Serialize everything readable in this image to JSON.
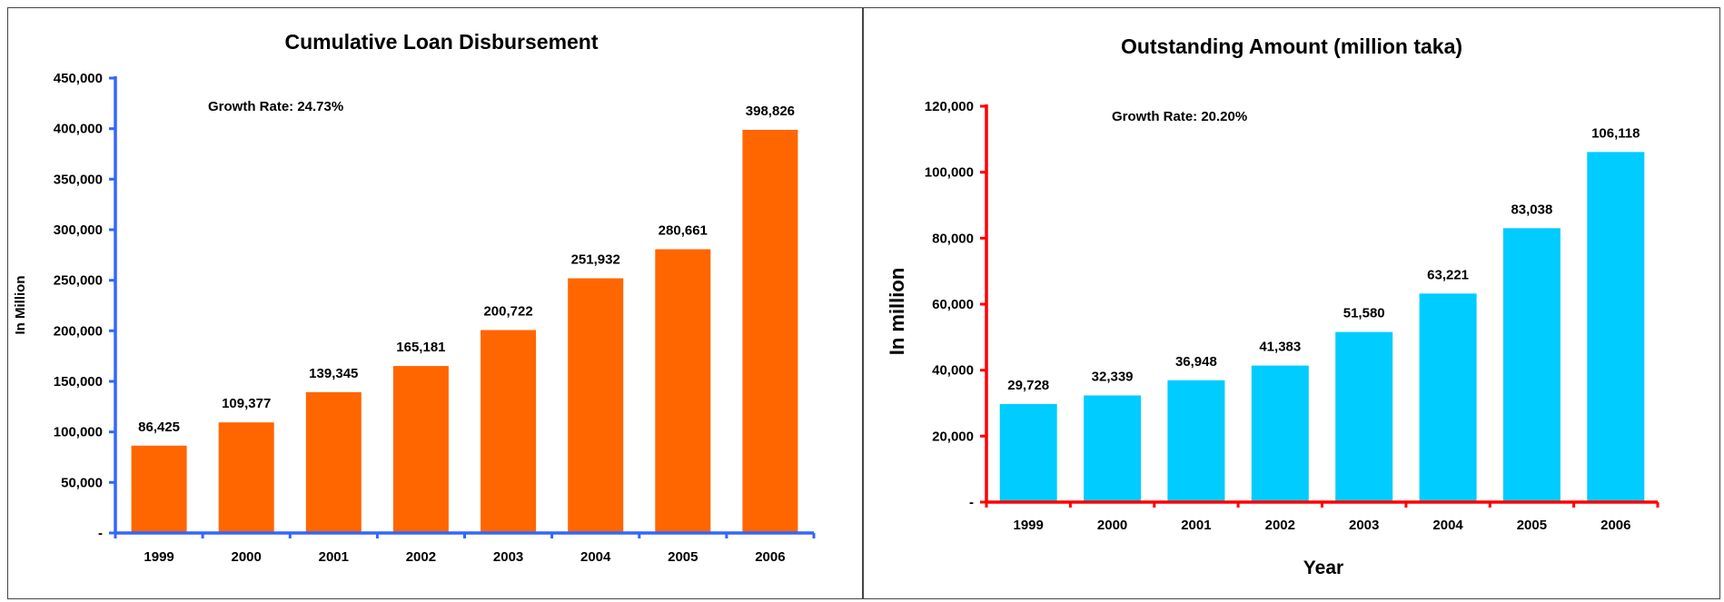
{
  "chart_data": [
    {
      "type": "bar",
      "title": "Cumulative Loan Disbursement",
      "annotation": "Growth Rate: 24.73%",
      "ylabel": "In Million",
      "xlabel": "",
      "categories": [
        "1999",
        "2000",
        "2001",
        "2002",
        "2003",
        "2004",
        "2005",
        "2006"
      ],
      "values": [
        86425,
        109377,
        139345,
        165181,
        200722,
        251932,
        280661,
        398826
      ],
      "data_labels": [
        "86,425",
        "109,377",
        "139,345",
        "165,181",
        "200,722",
        "251,932",
        "280,661",
        "398,826"
      ],
      "ylim": [
        0,
        450000
      ],
      "y_ticks": [
        0,
        50000,
        100000,
        150000,
        200000,
        250000,
        300000,
        350000,
        400000,
        450000
      ],
      "y_tick_labels": [
        "-",
        "50,000",
        "100,000",
        "150,000",
        "200,000",
        "250,000",
        "300,000",
        "350,000",
        "400,000",
        "450,000"
      ],
      "bar_color": "#FF6600",
      "axis_color": "#3366FF",
      "grid": false,
      "legend": false
    },
    {
      "type": "bar",
      "title": "Outstanding Amount (million taka)",
      "annotation": "Growth Rate: 20.20%",
      "ylabel": "In million",
      "xlabel": "Year",
      "categories": [
        "1999",
        "2000",
        "2001",
        "2002",
        "2003",
        "2004",
        "2005",
        "2006"
      ],
      "values": [
        29728,
        32339,
        36948,
        41383,
        51580,
        63221,
        83038,
        106118
      ],
      "data_labels": [
        "29,728",
        "32,339",
        "36,948",
        "41,383",
        "51,580",
        "63,221",
        "83,038",
        "106,118"
      ],
      "ylim": [
        0,
        120000
      ],
      "y_ticks": [
        0,
        20000,
        40000,
        60000,
        80000,
        100000,
        120000
      ],
      "y_tick_labels": [
        "-",
        "20,000",
        "40,000",
        "60,000",
        "80,000",
        "100,000",
        "120,000"
      ],
      "bar_color": "#00CCFF",
      "axis_color": "#FF0000",
      "grid": false,
      "legend": false
    }
  ]
}
